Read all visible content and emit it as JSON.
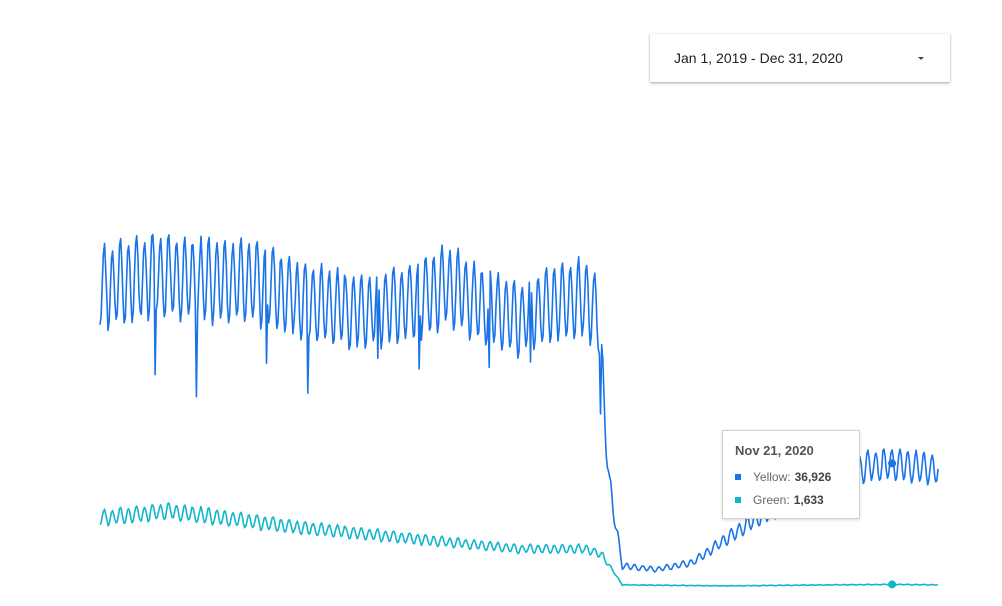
{
  "date_range": {
    "label": "Jan 1, 2019 - Dec 31, 2020"
  },
  "tooltip": {
    "date": "Nov 21, 2020",
    "yellow_label": "Yellow:",
    "yellow_value": "36,926",
    "green_label": "Green:",
    "green_value": "1,633"
  },
  "colors": {
    "yellow_series": "#1a73e8",
    "green_series": "#12b5cb"
  },
  "chart_data": {
    "type": "line",
    "x_range": [
      "2019-01-01",
      "2020-12-31"
    ],
    "ylim": [
      0,
      140000
    ],
    "grid": false,
    "legend": "none",
    "series": [
      {
        "name": "Yellow",
        "anchors": [
          [
            "2019-01-01",
            88000
          ],
          [
            "2019-02-15",
            92000
          ],
          [
            "2019-03-31",
            90000
          ],
          [
            "2019-05-15",
            90000
          ],
          [
            "2019-06-30",
            84000
          ],
          [
            "2019-08-15",
            81000
          ],
          [
            "2019-09-30",
            84000
          ],
          [
            "2019-10-31",
            89000
          ],
          [
            "2019-11-30",
            83000
          ],
          [
            "2019-12-31",
            79000
          ],
          [
            "2020-01-31",
            84000
          ],
          [
            "2020-02-29",
            85000
          ],
          [
            "2020-03-10",
            80000
          ],
          [
            "2020-03-14",
            60000
          ],
          [
            "2020-03-20",
            30000
          ],
          [
            "2020-03-31",
            7000
          ],
          [
            "2020-04-30",
            6000
          ],
          [
            "2020-05-31",
            8000
          ],
          [
            "2020-06-30",
            15000
          ],
          [
            "2020-07-31",
            22000
          ],
          [
            "2020-08-31",
            27000
          ],
          [
            "2020-09-30",
            33000
          ],
          [
            "2020-10-31",
            36000
          ],
          [
            "2020-11-21",
            36926
          ],
          [
            "2020-12-31",
            35000
          ]
        ]
      },
      {
        "name": "Green",
        "anchors": [
          [
            "2019-01-01",
            21000
          ],
          [
            "2019-03-01",
            23000
          ],
          [
            "2019-06-30",
            18000
          ],
          [
            "2019-09-30",
            15000
          ],
          [
            "2019-12-31",
            12000
          ],
          [
            "2020-02-29",
            12000
          ],
          [
            "2020-03-14",
            10000
          ],
          [
            "2020-03-31",
            1500
          ],
          [
            "2020-06-30",
            1200
          ],
          [
            "2020-09-30",
            1500
          ],
          [
            "2020-11-21",
            1633
          ],
          [
            "2020-12-31",
            1500
          ]
        ]
      }
    ]
  }
}
